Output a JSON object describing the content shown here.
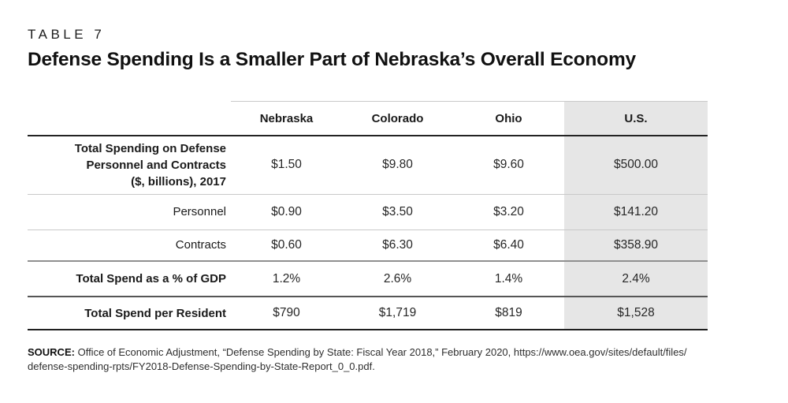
{
  "table_label": "TABLE 7",
  "title": "Defense Spending Is a Smaller Part of Nebraska’s Overall Economy",
  "table": {
    "columns": [
      "Nebraska",
      "Colorado",
      "Ohio",
      "U.S."
    ],
    "highlight_column": "U.S.",
    "rows": [
      {
        "label_lines": [
          "Total Spending on Defense",
          "Personnel and Contracts",
          "($, billions), 2017"
        ],
        "values": [
          "$1.50",
          "$9.80",
          "$9.60",
          "$500.00"
        ]
      },
      {
        "label": "Personnel",
        "values": [
          "$0.90",
          "$3.50",
          "$3.20",
          "$141.20"
        ]
      },
      {
        "label": "Contracts",
        "values": [
          "$0.60",
          "$6.30",
          "$6.40",
          "$358.90"
        ]
      },
      {
        "label": "Total Spend as a % of GDP",
        "values": [
          "1.2%",
          "2.6%",
          "1.4%",
          "2.4%"
        ]
      },
      {
        "label": "Total Spend per Resident",
        "values": [
          "$790",
          "$1,719",
          "$819",
          "$1,528"
        ]
      }
    ]
  },
  "source": {
    "label": "SOURCE:",
    "lines": [
      "Office of Economic Adjustment, “Defense Spending by State: Fiscal Year 2018,” February 2020, https://www.oea.gov/sites/default/files/",
      "defense-spending-rpts/FY2018-Defense-Spending-by-State-Report_0_0.pdf."
    ]
  },
  "colors": {
    "highlight_column_bg": "#e6e6e6",
    "rule_light": "#c9c9c9",
    "rule_medium": "#8f8f8f",
    "rule_strong": "#565656",
    "rule_dark": "#232323",
    "text": "#1a1a1a"
  }
}
